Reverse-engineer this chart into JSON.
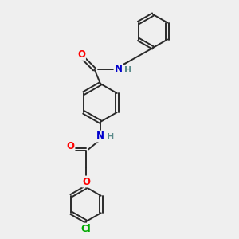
{
  "bg_color": "#efefef",
  "bond_color": "#2a2a2a",
  "bond_width": 1.4,
  "atom_colors": {
    "O": "#ff0000",
    "N": "#0000cd",
    "Cl": "#00aa00",
    "C": "#2a2a2a",
    "H": "#5a8a8a"
  },
  "font_size": 8.5,
  "fig_width": 3.0,
  "fig_height": 3.0,
  "xlim": [
    0,
    10
  ],
  "ylim": [
    0,
    10
  ]
}
